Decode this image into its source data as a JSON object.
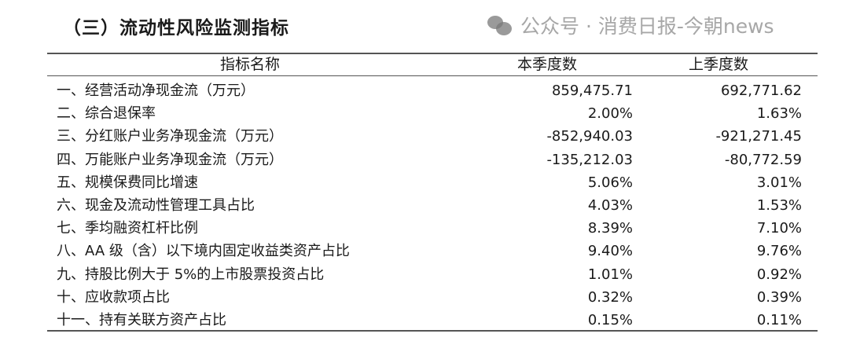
{
  "title": "（三）流动性风险监测指标",
  "columns": [
    "指标名称",
    "本季度数",
    "上季度数"
  ],
  "rows": [
    {
      "name": "一、经营活动净现金流（万元）",
      "current": "859,475.71",
      "previous": "692,771.62"
    },
    {
      "name": "二、综合退保率",
      "current": "2.00%",
      "previous": "1.63%"
    },
    {
      "name": "三、分红账户业务净现金流（万元）",
      "current": "-852,940.03",
      "previous": "-921,271.45"
    },
    {
      "name": "四、万能账户业务净现金流（万元）",
      "current": "-135,212.03",
      "previous": "-80,772.59"
    },
    {
      "name": "五、规模保费同比增速",
      "current": "5.06%",
      "previous": "3.01%"
    },
    {
      "name": "六、现金及流动性管理工具占比",
      "current": "4.03%",
      "previous": "1.53%"
    },
    {
      "name": "七、季均融资杠杆比例",
      "current": "8.39%",
      "previous": "7.10%"
    },
    {
      "name": "八、AA 级（含）以下境内固定收益类资产占比",
      "current": "9.40%",
      "previous": "9.76%"
    },
    {
      "name": "九、持股比例大于 5%的上市股票投资占比",
      "current": "1.01%",
      "previous": "0.92%"
    },
    {
      "name": "十、应收款项占比",
      "current": "0.32%",
      "previous": "0.39%"
    },
    {
      "name": "十一、持有关联方资产占比",
      "current": "0.15%",
      "previous": "0.11%"
    }
  ],
  "watermark": "公众号 · 消费日报-今朝news"
}
